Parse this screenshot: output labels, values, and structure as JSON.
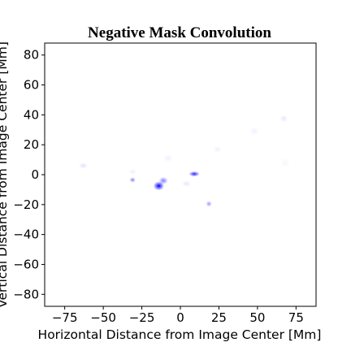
{
  "chart_data": {
    "type": "heatmap",
    "title": "Negative Mask Convolution",
    "xlabel": "Horizontal Distance from Image Center [Mm]",
    "ylabel": "Vertical Distance from Image Center [Mm]",
    "xlim": [
      -88,
      88
    ],
    "ylim": [
      -88,
      88
    ],
    "xticks": [
      -75,
      -50,
      -25,
      0,
      25,
      50,
      75
    ],
    "yticks": [
      -80,
      -60,
      -40,
      -20,
      0,
      20,
      40,
      60,
      80
    ],
    "xtick_labels": [
      "−75",
      "−50",
      "−25",
      "0",
      "25",
      "50",
      "75"
    ],
    "ytick_labels": [
      "−80",
      "−60",
      "−40",
      "−20",
      "0",
      "20",
      "40",
      "60",
      "80"
    ],
    "grid": false,
    "colormap": [
      "#ffffff",
      "#0000ff"
    ],
    "blobs": [
      {
        "x": -14,
        "y": -7.5,
        "intensity": 1.0,
        "rx": 3.5,
        "ry": 3
      },
      {
        "x": -11,
        "y": -4,
        "intensity": 0.5,
        "rx": 3.0,
        "ry": 2.5
      },
      {
        "x": 9,
        "y": 0.5,
        "intensity": 0.85,
        "rx": 3.5,
        "ry": 1.8
      },
      {
        "x": -31,
        "y": -3.5,
        "intensity": 0.5,
        "rx": 2.0,
        "ry": 1.8
      },
      {
        "x": 18.5,
        "y": -19.5,
        "intensity": 0.4,
        "rx": 2.0,
        "ry": 2.0
      },
      {
        "x": -63,
        "y": 6,
        "intensity": 0.12,
        "rx": 3.0,
        "ry": 2.0
      },
      {
        "x": 67,
        "y": 37.5,
        "intensity": 0.1,
        "rx": 2.5,
        "ry": 2.5
      },
      {
        "x": 48,
        "y": 29,
        "intensity": 0.06,
        "rx": 3.0,
        "ry": 2.5
      },
      {
        "x": 24,
        "y": 17,
        "intensity": 0.06,
        "rx": 3.0,
        "ry": 2.5
      },
      {
        "x": -8,
        "y": 11,
        "intensity": 0.06,
        "rx": 3.0,
        "ry": 2.5
      },
      {
        "x": -31,
        "y": 2,
        "intensity": 0.07,
        "rx": 2.5,
        "ry": 2.0
      },
      {
        "x": 4,
        "y": -6,
        "intensity": 0.1,
        "rx": 3.0,
        "ry": 2.0
      },
      {
        "x": 68,
        "y": 8,
        "intensity": 0.04,
        "rx": 3.0,
        "ry": 3.0
      }
    ]
  }
}
